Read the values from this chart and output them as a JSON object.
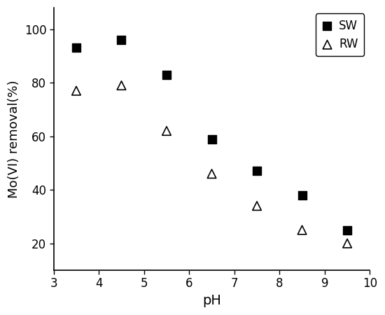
{
  "SW_x": [
    3.5,
    4.5,
    5.5,
    6.5,
    7.5,
    8.5,
    9.5
  ],
  "SW_y": [
    93,
    96,
    83,
    59,
    47,
    38,
    25
  ],
  "RW_x": [
    3.5,
    4.5,
    5.5,
    6.5,
    7.5,
    8.5,
    9.5
  ],
  "RW_y": [
    77,
    79,
    62,
    46,
    34,
    25,
    20
  ],
  "xlabel": "pH",
  "ylabel": "Mo(VI) removal(%)",
  "xlim": [
    3,
    10
  ],
  "ylim": [
    10,
    108
  ],
  "xticks": [
    3,
    4,
    5,
    6,
    7,
    8,
    9,
    10
  ],
  "yticks": [
    20,
    40,
    60,
    80,
    100
  ],
  "legend_SW": "SW",
  "legend_RW": "RW",
  "SW_marker": "s",
  "RW_marker": "^",
  "SW_color": "black",
  "RW_color": "black",
  "SW_markersize": 8,
  "RW_markersize": 9,
  "background_color": "#ffffff",
  "xlabel_fontsize": 14,
  "ylabel_fontsize": 13,
  "tick_fontsize": 12,
  "legend_fontsize": 12
}
